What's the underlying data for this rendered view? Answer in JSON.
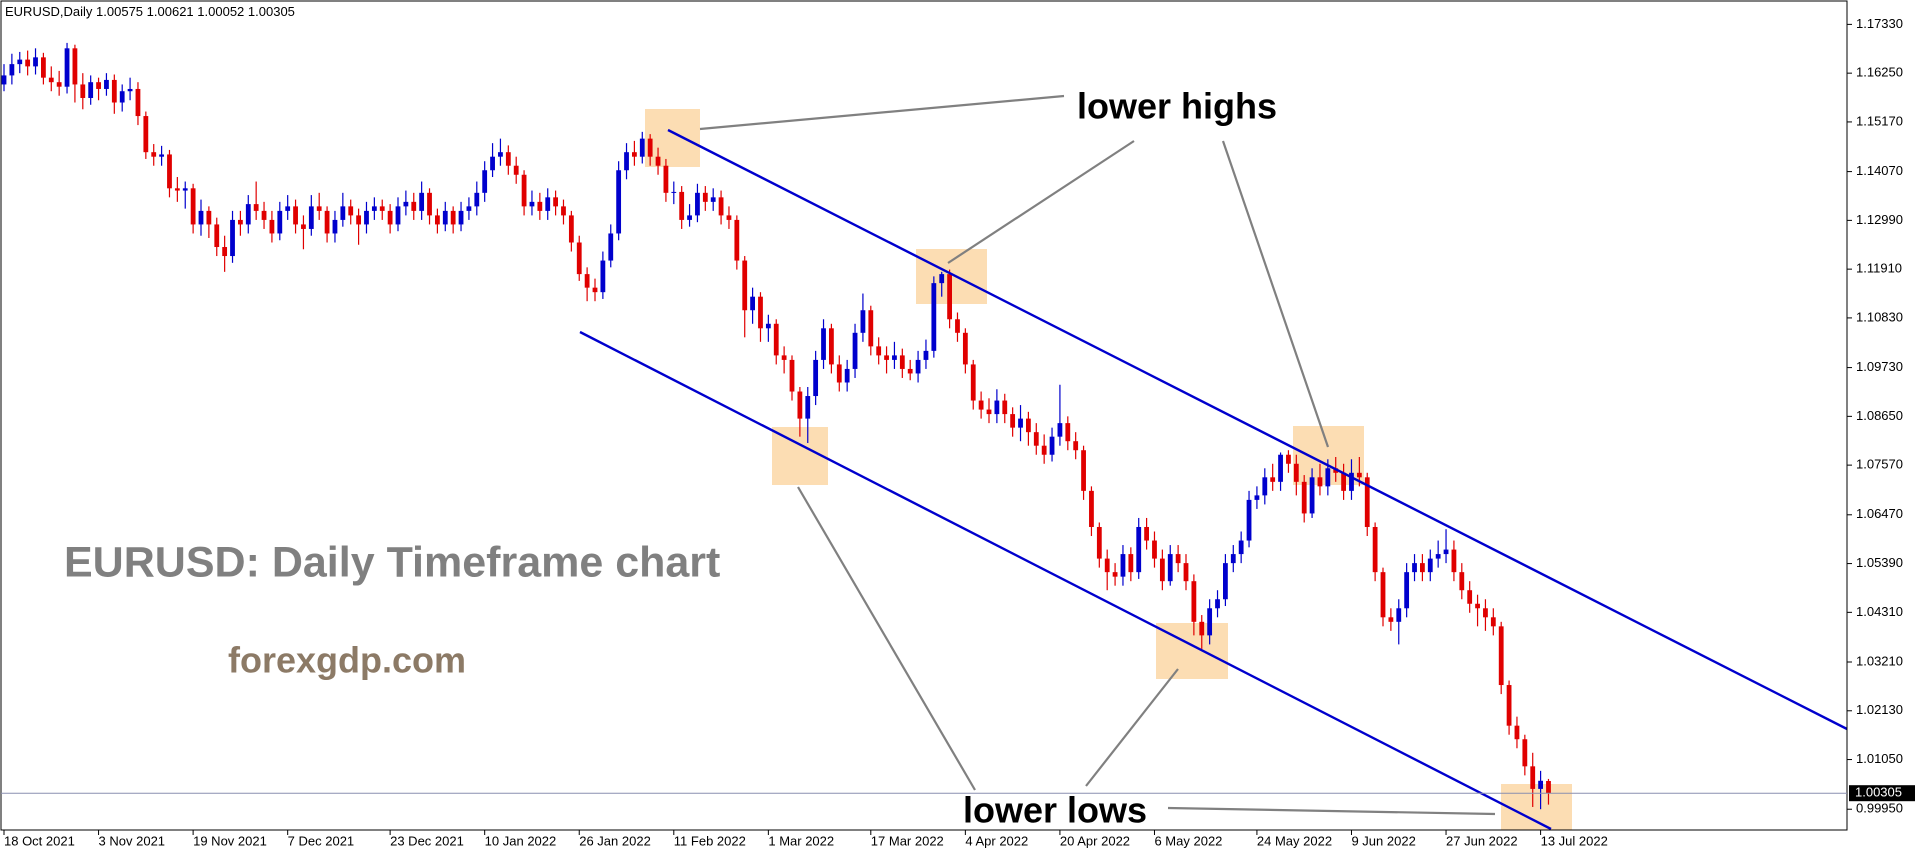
{
  "chart_data": {
    "type": "candlestick",
    "symbol": "EURUSD,Daily",
    "up_color": "#0000cd",
    "down_color": "#e00000",
    "annotations": [
      "lower highs",
      "lower lows",
      "EURUSD: Daily Timeframe chart",
      "forexgdp.com"
    ],
    "ylim": [
      0.9949,
      1.1787
    ],
    "yticks": [
      {
        "value": 1.1733,
        "label": "1.17330"
      },
      {
        "value": 1.1625,
        "label": "1.16250"
      },
      {
        "value": 1.1517,
        "label": "1.15170"
      },
      {
        "value": 1.1407,
        "label": "1.14070"
      },
      {
        "value": 1.1299,
        "label": "1.12990"
      },
      {
        "value": 1.1191,
        "label": "1.11910"
      },
      {
        "value": 1.1083,
        "label": "1.10830"
      },
      {
        "value": 1.0973,
        "label": "1.09730"
      },
      {
        "value": 1.0865,
        "label": "1.08650"
      },
      {
        "value": 1.0757,
        "label": "1.07570"
      },
      {
        "value": 1.0647,
        "label": "1.06470"
      },
      {
        "value": 1.0539,
        "label": "1.05390"
      },
      {
        "value": 1.0431,
        "label": "1.04310"
      },
      {
        "value": 1.0321,
        "label": "1.03210"
      },
      {
        "value": 1.0213,
        "label": "1.02130"
      },
      {
        "value": 1.0105,
        "label": "1.01050"
      },
      {
        "value": 0.9995,
        "label": "0.99950"
      }
    ],
    "xticks": [
      {
        "value": 0,
        "label": "18 Oct 2021"
      },
      {
        "value": 12,
        "label": "3 Nov 2021"
      },
      {
        "value": 24,
        "label": "19 Nov 2021"
      },
      {
        "value": 36,
        "label": "7 Dec 2021"
      },
      {
        "value": 49,
        "label": "23 Dec 2021"
      },
      {
        "value": 61,
        "label": "10 Jan 2022"
      },
      {
        "value": 73,
        "label": "26 Jan 2022"
      },
      {
        "value": 85,
        "label": "11 Feb 2022"
      },
      {
        "value": 97,
        "label": "1 Mar 2022"
      },
      {
        "value": 110,
        "label": "17 Mar 2022"
      },
      {
        "value": 122,
        "label": "4 Apr 2022"
      },
      {
        "value": 134,
        "label": "20 Apr 2022"
      },
      {
        "value": 146,
        "label": "6 May 2022"
      },
      {
        "value": 159,
        "label": "24 May 2022"
      },
      {
        "value": 171,
        "label": "9 Jun 2022"
      },
      {
        "value": 183,
        "label": "27 Jun 2022"
      },
      {
        "value": 195,
        "label": "13 Jul 2022"
      }
    ],
    "candles": [
      [
        1.16,
        1.1645,
        1.1585,
        1.162
      ],
      [
        1.162,
        1.1668,
        1.16,
        1.1645
      ],
      [
        1.1645,
        1.1672,
        1.1625,
        1.1655
      ],
      [
        1.1655,
        1.1675,
        1.162,
        1.164
      ],
      [
        1.164,
        1.168,
        1.1622,
        1.166
      ],
      [
        1.166,
        1.167,
        1.16,
        1.1615
      ],
      [
        1.1615,
        1.164,
        1.1585,
        1.1605
      ],
      [
        1.1605,
        1.163,
        1.1575,
        1.1595
      ],
      [
        1.1595,
        1.1692,
        1.158,
        1.168
      ],
      [
        1.168,
        1.1688,
        1.156,
        1.16
      ],
      [
        1.16,
        1.1625,
        1.1545,
        1.157
      ],
      [
        1.157,
        1.162,
        1.1555,
        1.1605
      ],
      [
        1.1605,
        1.1615,
        1.1565,
        1.159
      ],
      [
        1.159,
        1.1625,
        1.1575,
        1.161
      ],
      [
        1.161,
        1.1622,
        1.1535,
        1.156
      ],
      [
        1.156,
        1.16,
        1.154,
        1.1585
      ],
      [
        1.1585,
        1.1615,
        1.1565,
        1.159
      ],
      [
        1.159,
        1.1605,
        1.151,
        1.153
      ],
      [
        1.153,
        1.154,
        1.1435,
        1.145
      ],
      [
        1.145,
        1.1468,
        1.142,
        1.144
      ],
      [
        1.144,
        1.1464,
        1.142,
        1.1445
      ],
      [
        1.1445,
        1.1455,
        1.135,
        1.137
      ],
      [
        1.137,
        1.1395,
        1.134,
        1.1365
      ],
      [
        1.1365,
        1.1385,
        1.1325,
        1.137
      ],
      [
        1.137,
        1.138,
        1.127,
        1.129
      ],
      [
        1.129,
        1.1345,
        1.1265,
        1.132
      ],
      [
        1.132,
        1.133,
        1.126,
        1.129
      ],
      [
        1.129,
        1.1305,
        1.122,
        1.124
      ],
      [
        1.124,
        1.1265,
        1.1185,
        1.122
      ],
      [
        1.122,
        1.132,
        1.1205,
        1.13
      ],
      [
        1.13,
        1.132,
        1.1265,
        1.129
      ],
      [
        1.129,
        1.1355,
        1.127,
        1.1335
      ],
      [
        1.1335,
        1.1385,
        1.13,
        1.132
      ],
      [
        1.132,
        1.134,
        1.128,
        1.13
      ],
      [
        1.13,
        1.132,
        1.125,
        1.127
      ],
      [
        1.127,
        1.134,
        1.1255,
        1.132
      ],
      [
        1.132,
        1.1355,
        1.13,
        1.133
      ],
      [
        1.133,
        1.1345,
        1.127,
        1.129
      ],
      [
        1.129,
        1.131,
        1.1235,
        1.128
      ],
      [
        1.128,
        1.1355,
        1.1265,
        1.133
      ],
      [
        1.133,
        1.136,
        1.13,
        1.132
      ],
      [
        1.132,
        1.133,
        1.125,
        1.127
      ],
      [
        1.127,
        1.132,
        1.125,
        1.13
      ],
      [
        1.13,
        1.136,
        1.1285,
        1.133
      ],
      [
        1.133,
        1.1345,
        1.129,
        1.131
      ],
      [
        1.131,
        1.1325,
        1.1245,
        1.129
      ],
      [
        1.129,
        1.134,
        1.127,
        1.132
      ],
      [
        1.132,
        1.135,
        1.13,
        1.133
      ],
      [
        1.133,
        1.1345,
        1.13,
        1.132
      ],
      [
        1.132,
        1.1335,
        1.127,
        1.129
      ],
      [
        1.129,
        1.135,
        1.1275,
        1.133
      ],
      [
        1.133,
        1.1365,
        1.131,
        1.134
      ],
      [
        1.134,
        1.136,
        1.13,
        1.132
      ],
      [
        1.132,
        1.1385,
        1.13,
        1.136
      ],
      [
        1.136,
        1.137,
        1.129,
        1.131
      ],
      [
        1.131,
        1.1325,
        1.127,
        1.129
      ],
      [
        1.129,
        1.134,
        1.1275,
        1.132
      ],
      [
        1.132,
        1.133,
        1.127,
        1.129
      ],
      [
        1.129,
        1.134,
        1.1275,
        1.132
      ],
      [
        1.132,
        1.135,
        1.13,
        1.133
      ],
      [
        1.133,
        1.1385,
        1.131,
        1.136
      ],
      [
        1.136,
        1.143,
        1.134,
        1.141
      ],
      [
        1.141,
        1.147,
        1.1395,
        1.144
      ],
      [
        1.144,
        1.148,
        1.142,
        1.145
      ],
      [
        1.145,
        1.1465,
        1.14,
        1.142
      ],
      [
        1.142,
        1.144,
        1.138,
        1.14
      ],
      [
        1.14,
        1.141,
        1.131,
        1.133
      ],
      [
        1.133,
        1.1365,
        1.131,
        1.134
      ],
      [
        1.134,
        1.136,
        1.13,
        1.132
      ],
      [
        1.132,
        1.137,
        1.13,
        1.135
      ],
      [
        1.135,
        1.1365,
        1.131,
        1.133
      ],
      [
        1.133,
        1.1345,
        1.129,
        1.131
      ],
      [
        1.131,
        1.132,
        1.123,
        1.125
      ],
      [
        1.125,
        1.1265,
        1.1165,
        1.118
      ],
      [
        1.118,
        1.1195,
        1.112,
        1.115
      ],
      [
        1.115,
        1.117,
        1.112,
        1.114
      ],
      [
        1.114,
        1.123,
        1.1125,
        1.121
      ],
      [
        1.121,
        1.129,
        1.1195,
        1.127
      ],
      [
        1.127,
        1.143,
        1.1255,
        1.141
      ],
      [
        1.141,
        1.147,
        1.139,
        1.145
      ],
      [
        1.145,
        1.1475,
        1.142,
        1.144
      ],
      [
        1.144,
        1.1495,
        1.1425,
        1.148
      ],
      [
        1.148,
        1.149,
        1.142,
        1.144
      ],
      [
        1.144,
        1.146,
        1.14,
        1.142
      ],
      [
        1.142,
        1.1435,
        1.134,
        1.136
      ],
      [
        1.136,
        1.1385,
        1.1335,
        1.1362
      ],
      [
        1.1362,
        1.1375,
        1.128,
        1.13
      ],
      [
        1.13,
        1.1335,
        1.1285,
        1.131
      ],
      [
        1.131,
        1.138,
        1.1295,
        1.136
      ],
      [
        1.136,
        1.1375,
        1.132,
        1.134
      ],
      [
        1.134,
        1.137,
        1.132,
        1.135
      ],
      [
        1.135,
        1.1365,
        1.129,
        1.131
      ],
      [
        1.131,
        1.133,
        1.128,
        1.13
      ],
      [
        1.13,
        1.131,
        1.119,
        1.121
      ],
      [
        1.121,
        1.122,
        1.104,
        1.11
      ],
      [
        1.11,
        1.115,
        1.107,
        1.113
      ],
      [
        1.113,
        1.114,
        1.103,
        1.106
      ],
      [
        1.106,
        1.109,
        1.103,
        1.107
      ],
      [
        1.107,
        1.108,
        1.098,
        1.1
      ],
      [
        1.1,
        1.102,
        1.096,
        1.099
      ],
      [
        1.099,
        1.1,
        1.09,
        1.092
      ],
      [
        1.092,
        1.093,
        1.082,
        1.086
      ],
      [
        1.086,
        1.093,
        1.0806,
        1.091
      ],
      [
        1.091,
        1.101,
        1.089,
        1.099
      ],
      [
        1.099,
        1.108,
        1.097,
        1.106
      ],
      [
        1.106,
        1.107,
        1.096,
        1.098
      ],
      [
        1.098,
        1.1,
        1.092,
        1.094
      ],
      [
        1.094,
        1.099,
        1.092,
        1.097
      ],
      [
        1.097,
        1.107,
        1.095,
        1.105
      ],
      [
        1.105,
        1.1137,
        1.103,
        1.11
      ],
      [
        1.11,
        1.111,
        1.1,
        1.102
      ],
      [
        1.102,
        1.104,
        1.098,
        1.1
      ],
      [
        1.1,
        1.102,
        1.096,
        1.099
      ],
      [
        1.099,
        1.103,
        1.097,
        1.1
      ],
      [
        1.1,
        1.1015,
        1.095,
        1.097
      ],
      [
        1.097,
        1.099,
        1.0945,
        1.096
      ],
      [
        1.096,
        1.101,
        1.094,
        1.099
      ],
      [
        1.099,
        1.1035,
        1.097,
        1.101
      ],
      [
        1.101,
        1.1175,
        1.0995,
        1.116
      ],
      [
        1.116,
        1.1185,
        1.113,
        1.118
      ],
      [
        1.118,
        1.119,
        1.106,
        1.108
      ],
      [
        1.108,
        1.1095,
        1.103,
        1.105
      ],
      [
        1.105,
        1.106,
        1.096,
        1.098
      ],
      [
        1.098,
        1.099,
        1.088,
        1.09
      ],
      [
        1.09,
        1.092,
        1.086,
        1.088
      ],
      [
        1.088,
        1.0905,
        1.085,
        1.087
      ],
      [
        1.087,
        1.0925,
        1.085,
        1.09
      ],
      [
        1.09,
        1.0915,
        1.085,
        1.087
      ],
      [
        1.087,
        1.0885,
        1.082,
        1.084
      ],
      [
        1.084,
        1.089,
        1.081,
        1.086
      ],
      [
        1.086,
        1.0875,
        1.08,
        1.083
      ],
      [
        1.083,
        1.085,
        1.078,
        1.08
      ],
      [
        1.08,
        1.0825,
        1.076,
        1.078
      ],
      [
        1.078,
        1.084,
        1.0765,
        1.082
      ],
      [
        1.082,
        1.0935,
        1.08,
        1.085
      ],
      [
        1.085,
        1.0865,
        1.079,
        1.081
      ],
      [
        1.081,
        1.083,
        1.077,
        1.079
      ],
      [
        1.079,
        1.08,
        1.068,
        1.07
      ],
      [
        1.07,
        1.071,
        1.06,
        1.062
      ],
      [
        1.062,
        1.063,
        1.053,
        1.055
      ],
      [
        1.055,
        1.057,
        1.048,
        1.052
      ],
      [
        1.052,
        1.054,
        1.049,
        1.051
      ],
      [
        1.051,
        1.058,
        1.049,
        1.056
      ],
      [
        1.056,
        1.0575,
        1.05,
        1.052
      ],
      [
        1.052,
        1.064,
        1.0505,
        1.062
      ],
      [
        1.062,
        1.064,
        1.057,
        1.059
      ],
      [
        1.059,
        1.061,
        1.053,
        1.055
      ],
      [
        1.055,
        1.057,
        1.048,
        1.05
      ],
      [
        1.05,
        1.058,
        1.049,
        1.056
      ],
      [
        1.056,
        1.058,
        1.052,
        1.054
      ],
      [
        1.054,
        1.056,
        1.048,
        1.05
      ],
      [
        1.05,
        1.0515,
        1.038,
        1.041
      ],
      [
        1.041,
        1.0425,
        1.035,
        1.038
      ],
      [
        1.038,
        1.046,
        1.036,
        1.044
      ],
      [
        1.044,
        1.048,
        1.042,
        1.046
      ],
      [
        1.046,
        1.056,
        1.0445,
        1.054
      ],
      [
        1.054,
        1.058,
        1.052,
        1.056
      ],
      [
        1.056,
        1.061,
        1.054,
        1.059
      ],
      [
        1.059,
        1.07,
        1.0575,
        1.068
      ],
      [
        1.068,
        1.071,
        1.066,
        1.069
      ],
      [
        1.069,
        1.075,
        1.067,
        1.073
      ],
      [
        1.073,
        1.076,
        1.07,
        1.072
      ],
      [
        1.072,
        1.0785,
        1.07,
        1.078
      ],
      [
        1.078,
        1.079,
        1.074,
        1.076
      ],
      [
        1.076,
        1.078,
        1.069,
        1.072
      ],
      [
        1.072,
        1.0735,
        1.063,
        1.065
      ],
      [
        1.065,
        1.075,
        1.064,
        1.073
      ],
      [
        1.073,
        1.076,
        1.069,
        1.071
      ],
      [
        1.071,
        1.077,
        1.069,
        1.075
      ],
      [
        1.075,
        1.0775,
        1.072,
        1.074
      ],
      [
        1.074,
        1.076,
        1.068,
        1.07
      ],
      [
        1.07,
        1.077,
        1.068,
        1.074
      ],
      [
        1.074,
        1.0775,
        1.071,
        1.073
      ],
      [
        1.073,
        1.074,
        1.06,
        1.062
      ],
      [
        1.062,
        1.063,
        1.05,
        1.052
      ],
      [
        1.052,
        1.053,
        1.04,
        1.042
      ],
      [
        1.042,
        1.044,
        1.039,
        1.041
      ],
      [
        1.041,
        1.046,
        1.036,
        1.044
      ],
      [
        1.044,
        1.054,
        1.042,
        1.052
      ],
      [
        1.052,
        1.056,
        1.05,
        1.054
      ],
      [
        1.054,
        1.056,
        1.05,
        1.052
      ],
      [
        1.052,
        1.057,
        1.05,
        1.055
      ],
      [
        1.055,
        1.059,
        1.053,
        1.056
      ],
      [
        1.056,
        1.0615,
        1.054,
        1.057
      ],
      [
        1.057,
        1.059,
        1.05,
        1.052
      ],
      [
        1.052,
        1.054,
        1.046,
        1.048
      ],
      [
        1.048,
        1.05,
        1.043,
        1.045
      ],
      [
        1.045,
        1.047,
        1.04,
        1.044
      ],
      [
        1.044,
        1.046,
        1.039,
        1.042
      ],
      [
        1.042,
        1.044,
        1.038,
        1.04
      ],
      [
        1.04,
        1.041,
        1.025,
        1.027
      ],
      [
        1.027,
        1.028,
        1.016,
        1.018
      ],
      [
        1.018,
        1.02,
        1.013,
        1.015
      ],
      [
        1.015,
        1.016,
        1.007,
        1.009
      ],
      [
        1.009,
        1.012,
        1.0,
        1.004
      ],
      [
        1.004,
        1.008,
        0.9995,
        1.0058
      ],
      [
        1.00575,
        1.00621,
        1.00052,
        1.00305
      ]
    ]
  }
}
